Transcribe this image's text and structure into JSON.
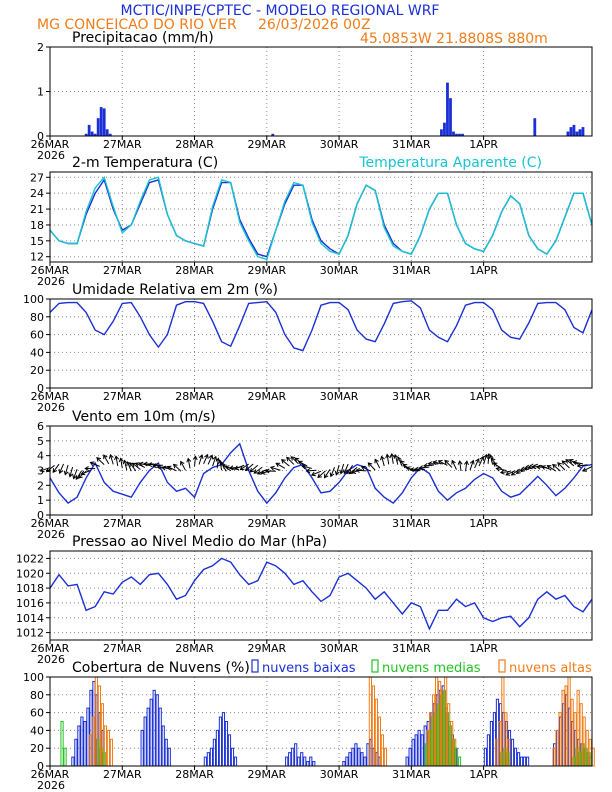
{
  "header": {
    "title": "MCTIC/INPE/CPTEC - MODELO REGIONAL WRF",
    "location": "MG CONCEICAO DO RIO VER",
    "run": "26/03/2026 00Z",
    "coords": "45.0853W 21.8808S 880m"
  },
  "colors": {
    "series": "#1a2fd6",
    "cyan": "#19c4d1",
    "low_clouds": "#1a2fd6",
    "mid_clouds": "#22c322",
    "high_clouds": "#f07d1a",
    "grid": "#888888"
  },
  "x_axis": {
    "first_label": "26MAR",
    "year": "2026",
    "labels": [
      "26MAR",
      "27MAR",
      "28MAR",
      "29MAR",
      "30MAR",
      "31MAR",
      "1APR"
    ]
  },
  "chart_data": [
    {
      "type": "bar",
      "title": "Precipitacao (mm/h)",
      "ylim": [
        0,
        2
      ],
      "yticks": [
        "0",
        "1",
        "2"
      ],
      "x_hours": [
        12,
        13,
        14,
        15,
        16,
        17,
        18,
        19,
        20,
        74,
        130,
        131,
        132,
        133,
        134,
        135,
        136,
        137,
        161,
        172,
        173,
        174,
        175,
        176,
        177
      ],
      "values": [
        0.05,
        0.25,
        0.1,
        0.05,
        0.4,
        0.65,
        0.62,
        0.15,
        0.05,
        0.05,
        0.15,
        0.3,
        1.2,
        0.85,
        0.1,
        0.05,
        0.05,
        0.05,
        0.4,
        0.1,
        0.2,
        0.25,
        0.1,
        0.15,
        0.2
      ]
    },
    {
      "type": "line",
      "title": "2-m Temperatura (C)",
      "legend": "Temperatura Aparente (C)",
      "ylim": [
        11,
        28
      ],
      "yticks": [
        "12",
        "15",
        "18",
        "21",
        "24",
        "27"
      ],
      "series": [
        {
          "name": "2-m Temperatura (C)",
          "x_hours": [
            0,
            3,
            6,
            9,
            12,
            15,
            18,
            21,
            24,
            27,
            30,
            33,
            36,
            39,
            42,
            45,
            48,
            51,
            54,
            57,
            60,
            63,
            66,
            69,
            72,
            75,
            78,
            81,
            84,
            87,
            90,
            93,
            96,
            99,
            102,
            105,
            108,
            111,
            114,
            117,
            120,
            123,
            126,
            129,
            132,
            135,
            138,
            141,
            144,
            147,
            150,
            153,
            156,
            159,
            162,
            165,
            168,
            171,
            174,
            177,
            180
          ],
          "values": [
            17,
            15,
            14.5,
            14.5,
            20,
            24,
            26.5,
            21,
            17,
            18,
            22,
            26,
            26.5,
            20,
            16,
            15,
            14.5,
            14,
            21,
            26,
            26,
            19,
            15.5,
            12.5,
            12,
            17,
            22,
            25.5,
            25.5,
            19,
            15,
            13.5,
            12.5,
            16,
            22,
            25.5,
            24.5,
            18,
            14.5,
            13,
            12.5,
            16,
            21,
            24,
            24,
            18,
            14.5,
            13.5,
            13,
            16,
            20.5,
            23.5,
            22,
            16,
            13.5,
            12.5,
            15,
            19.5,
            24,
            24,
            18
          ]
        },
        {
          "name": "Temperatura Aparente (C)",
          "x_hours": [
            0,
            3,
            6,
            9,
            12,
            15,
            18,
            21,
            24,
            27,
            30,
            33,
            36,
            39,
            42,
            45,
            48,
            51,
            54,
            57,
            60,
            63,
            66,
            69,
            72,
            75,
            78,
            81,
            84,
            87,
            90,
            93,
            96,
            99,
            102,
            105,
            108,
            111,
            114,
            117,
            120,
            123,
            126,
            129,
            132,
            135,
            138,
            141,
            144,
            147,
            150,
            153,
            156,
            159,
            162,
            165,
            168,
            171,
            174,
            177,
            180
          ],
          "values": [
            17,
            15,
            14.5,
            14.5,
            20.5,
            25,
            27,
            21.5,
            16.5,
            18,
            22.5,
            26.5,
            27,
            20,
            16,
            15,
            14.5,
            14,
            21.5,
            26.5,
            26,
            18.5,
            15,
            12,
            11.5,
            17,
            22.5,
            26,
            25.5,
            18.5,
            14.5,
            13,
            12.5,
            16,
            22,
            25.5,
            24.5,
            17.5,
            14,
            13,
            12.5,
            16,
            21,
            24,
            24,
            18,
            14.5,
            13.5,
            13,
            16,
            20.5,
            23.5,
            22,
            16,
            13.5,
            12.5,
            15,
            19.5,
            24,
            24,
            18
          ]
        }
      ]
    },
    {
      "type": "line",
      "title": "Umidade Relativa em 2m (%)",
      "ylim": [
        0,
        100
      ],
      "yticks": [
        "0",
        "20",
        "40",
        "60",
        "80",
        "100"
      ],
      "x_hours": [
        0,
        3,
        6,
        9,
        12,
        15,
        18,
        21,
        24,
        27,
        30,
        33,
        36,
        39,
        42,
        45,
        48,
        51,
        54,
        57,
        60,
        63,
        66,
        69,
        72,
        75,
        78,
        81,
        84,
        87,
        90,
        93,
        96,
        99,
        102,
        105,
        108,
        111,
        114,
        117,
        120,
        123,
        126,
        129,
        132,
        135,
        138,
        141,
        144,
        147,
        150,
        153,
        156,
        159,
        162,
        165,
        168,
        171,
        174,
        177,
        180
      ],
      "values": [
        85,
        95,
        96,
        96,
        85,
        65,
        60,
        75,
        95,
        96,
        80,
        60,
        46,
        60,
        93,
        97,
        97,
        95,
        75,
        52,
        47,
        70,
        95,
        96,
        97,
        85,
        60,
        45,
        42,
        65,
        93,
        96,
        96,
        88,
        65,
        55,
        52,
        72,
        95,
        97,
        98,
        90,
        65,
        57,
        52,
        70,
        93,
        96,
        96,
        88,
        65,
        57,
        55,
        73,
        95,
        96,
        96,
        88,
        68,
        62,
        88
      ]
    },
    {
      "type": "line",
      "title": "Vento em 10m (m/s)",
      "ylim": [
        0,
        6
      ],
      "yticks": [
        "0",
        "1",
        "2",
        "3",
        "4",
        "5",
        "6"
      ],
      "x_hours": [
        0,
        3,
        6,
        9,
        12,
        15,
        18,
        21,
        24,
        27,
        30,
        33,
        36,
        39,
        42,
        45,
        48,
        51,
        54,
        57,
        60,
        63,
        66,
        69,
        72,
        75,
        78,
        81,
        84,
        87,
        90,
        93,
        96,
        99,
        102,
        105,
        108,
        111,
        114,
        117,
        120,
        123,
        126,
        129,
        132,
        135,
        138,
        141,
        144,
        147,
        150,
        153,
        156,
        159,
        162,
        165,
        168,
        171,
        174,
        177,
        180
      ],
      "values": [
        2.5,
        1.5,
        0.8,
        1.2,
        2.5,
        3.5,
        2.2,
        1.6,
        1.4,
        1.2,
        2.2,
        3.0,
        3.5,
        2.2,
        1.6,
        1.8,
        1.2,
        2.8,
        3.2,
        3.4,
        4.2,
        4.8,
        3.0,
        1.6,
        0.8,
        1.5,
        2.5,
        3.2,
        3.4,
        2.5,
        1.5,
        1.6,
        2.2,
        3.0,
        3.4,
        3.2,
        1.8,
        1.2,
        0.8,
        1.5,
        2.5,
        3.2,
        2.8,
        1.6,
        1.0,
        1.5,
        1.8,
        2.4,
        2.8,
        2.5,
        1.6,
        1.2,
        1.4,
        2.0,
        2.6,
        2.0,
        1.3,
        1.8,
        2.5,
        3.3,
        3.4
      ]
    },
    {
      "type": "line",
      "title": "Pressao ao Nivel Medio do Mar (hPa)",
      "ylim": [
        1011,
        1023
      ],
      "yticks": [
        "1012",
        "1014",
        "1016",
        "1018",
        "1020",
        "1022"
      ],
      "x_hours": [
        0,
        3,
        6,
        9,
        12,
        15,
        18,
        21,
        24,
        27,
        30,
        33,
        36,
        39,
        42,
        45,
        48,
        51,
        54,
        57,
        60,
        63,
        66,
        69,
        72,
        75,
        78,
        81,
        84,
        87,
        90,
        93,
        96,
        99,
        102,
        105,
        108,
        111,
        114,
        117,
        120,
        123,
        126,
        129,
        132,
        135,
        138,
        141,
        144,
        147,
        150,
        153,
        156,
        159,
        162,
        165,
        168,
        171,
        174,
        177,
        180
      ],
      "values": [
        1018,
        1019.8,
        1018.3,
        1018.5,
        1015,
        1015.5,
        1017.5,
        1017.2,
        1018.8,
        1019.5,
        1018.5,
        1019.8,
        1020,
        1018.5,
        1016.5,
        1017,
        1019,
        1020.5,
        1021,
        1022,
        1021.5,
        1019.8,
        1018.5,
        1019,
        1021.5,
        1021,
        1020,
        1018.5,
        1019,
        1017.5,
        1016.2,
        1017,
        1019.5,
        1020,
        1019,
        1018,
        1016.5,
        1017.5,
        1016,
        1014.5,
        1016,
        1015.5,
        1012.5,
        1015,
        1015,
        1016.5,
        1015.5,
        1016,
        1014,
        1013.5,
        1014,
        1014.2,
        1012.8,
        1014,
        1016.5,
        1017.5,
        1016.5,
        1017,
        1015.5,
        1014.8,
        1016.5
      ]
    },
    {
      "type": "bar",
      "title": "Cobertura de Nuvens (%)",
      "legend": [
        "nuvens baixas",
        "nuvens medias",
        "nuvens altas"
      ],
      "ylim": [
        0,
        100
      ],
      "yticks": [
        "0",
        "20",
        "40",
        "60",
        "80",
        "100"
      ],
      "series": [
        {
          "name": "nuvens baixas",
          "x_hours": [
            8,
            9,
            10,
            11,
            12,
            13,
            14,
            15,
            16,
            17,
            18,
            31,
            32,
            33,
            34,
            35,
            36,
            37,
            38,
            39,
            40,
            52,
            53,
            54,
            55,
            56,
            57,
            58,
            59,
            60,
            61,
            62,
            79,
            80,
            81,
            82,
            83,
            84,
            85,
            86,
            87,
            88,
            98,
            99,
            100,
            101,
            102,
            103,
            104,
            105,
            106,
            107,
            108,
            109,
            110,
            119,
            120,
            121,
            122,
            123,
            124,
            125,
            126,
            127,
            128,
            129,
            130,
            131,
            132,
            133,
            134,
            135,
            145,
            146,
            147,
            148,
            149,
            150,
            151,
            152,
            153,
            154,
            155,
            156,
            157,
            158,
            159,
            168,
            169,
            170,
            171,
            172,
            173,
            174,
            175,
            176,
            177,
            178,
            179,
            180
          ],
          "values": [
            10,
            30,
            45,
            55,
            50,
            65,
            85,
            95,
            80,
            60,
            40,
            40,
            55,
            65,
            75,
            85,
            80,
            65,
            45,
            30,
            20,
            10,
            15,
            20,
            30,
            40,
            55,
            60,
            50,
            35,
            20,
            10,
            10,
            15,
            20,
            25,
            10,
            15,
            10,
            5,
            10,
            5,
            5,
            10,
            15,
            20,
            25,
            20,
            15,
            10,
            25,
            30,
            20,
            15,
            10,
            10,
            20,
            30,
            35,
            40,
            35,
            45,
            50,
            60,
            70,
            80,
            85,
            90,
            65,
            50,
            35,
            20,
            20,
            35,
            50,
            60,
            75,
            70,
            60,
            50,
            40,
            30,
            20,
            15,
            10,
            10,
            10,
            25,
            40,
            55,
            70,
            80,
            65,
            50,
            40,
            30,
            25,
            20,
            15,
            10
          ]
        },
        {
          "name": "nuvens medias",
          "x_hours": [
            4,
            5,
            16,
            17,
            18,
            125,
            126,
            127,
            128,
            129,
            130,
            131,
            132,
            133,
            134,
            135,
            136,
            150,
            151,
            152,
            174,
            175,
            176,
            177,
            178,
            179
          ],
          "values": [
            50,
            20,
            30,
            20,
            15,
            25,
            40,
            55,
            60,
            70,
            80,
            85,
            60,
            45,
            30,
            20,
            10,
            15,
            20,
            15,
            10,
            20,
            15,
            25,
            20,
            15
          ]
        },
        {
          "name": "nuvens altas",
          "x_hours": [
            13,
            14,
            15,
            16,
            17,
            18,
            19,
            20,
            106,
            107,
            108,
            109,
            110,
            111,
            125,
            126,
            127,
            128,
            129,
            130,
            131,
            132,
            133,
            134,
            148,
            149,
            150,
            151,
            152,
            167,
            168,
            169,
            170,
            171,
            172,
            173,
            174,
            175,
            176,
            177,
            178,
            179,
            180
          ],
          "values": [
            35,
            55,
            100,
            90,
            70,
            45,
            40,
            30,
            100,
            90,
            75,
            55,
            35,
            20,
            40,
            60,
            80,
            100,
            95,
            85,
            100,
            70,
            50,
            30,
            30,
            50,
            100,
            60,
            30,
            20,
            40,
            60,
            85,
            90,
            100,
            75,
            60,
            85,
            70,
            55,
            40,
            30,
            20
          ]
        }
      ]
    }
  ]
}
